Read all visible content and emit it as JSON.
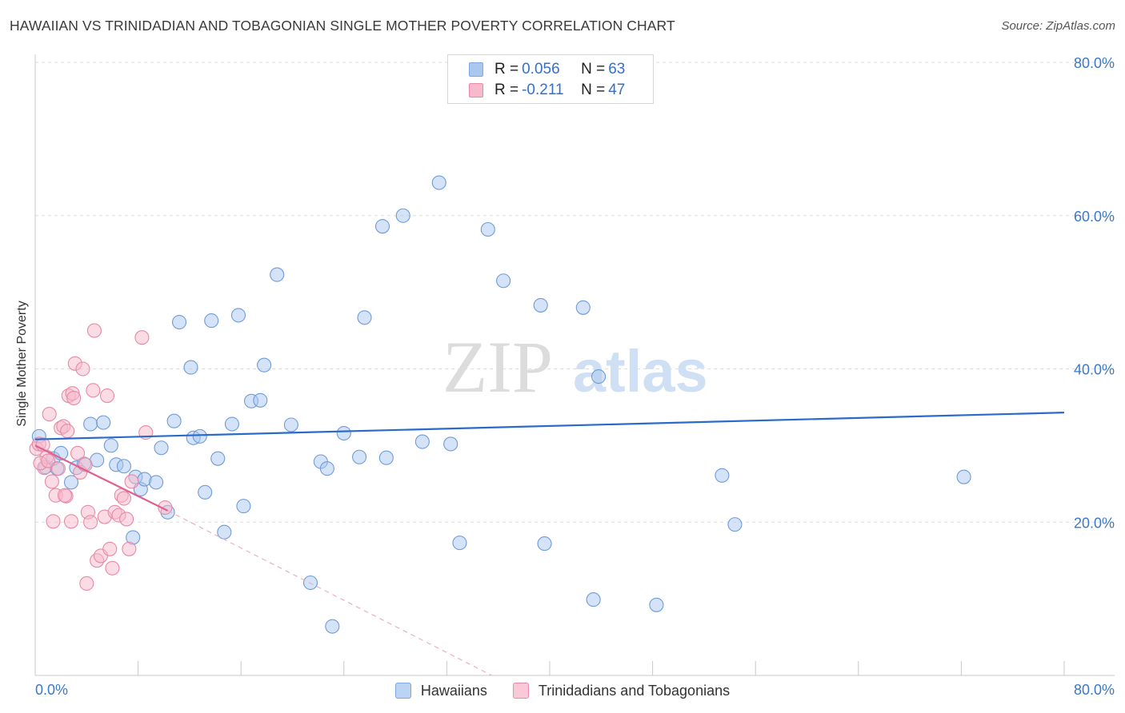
{
  "header": {
    "title": "HAWAIIAN VS TRINIDADIAN AND TOBAGONIAN SINGLE MOTHER POVERTY CORRELATION CHART",
    "source": "Source: ZipAtlas.com"
  },
  "watermark": {
    "zip": "ZIP",
    "atlas": "atlas"
  },
  "legend": {
    "items": [
      {
        "r_label": "R = ",
        "r_value": "0.056",
        "n_label": "N = ",
        "n_value": "63",
        "color": "#a9c8f0",
        "border": "#7fa6de"
      },
      {
        "r_label": "R = ",
        "r_value": "-0.211",
        "n_label": "N = ",
        "n_value": "47",
        "color": "#f7b9cc",
        "border": "#e88aa8"
      }
    ]
  },
  "bottom_legend": {
    "items": [
      {
        "label": "Hawaiians",
        "color": "#bcd4f4",
        "border": "#7fa6de"
      },
      {
        "label": "Trinidadians and Tobagonians",
        "color": "#f9c9d7",
        "border": "#e88aa8"
      }
    ]
  },
  "chart_data": {
    "type": "scatter",
    "title": "HAWAIIAN VS TRINIDADIAN AND TOBAGONIAN SINGLE MOTHER POVERTY CORRELATION CHART",
    "xlabel": "",
    "ylabel": "Single Mother Poverty",
    "xlim": [
      0,
      80
    ],
    "ylim": [
      0,
      80
    ],
    "x_tick_labels": [
      "0.0%",
      "80.0%"
    ],
    "y_ticks": [
      20,
      40,
      60,
      80
    ],
    "y_tick_labels": [
      "20.0%",
      "40.0%",
      "60.0%",
      "80.0%"
    ],
    "grid": true,
    "series": [
      {
        "name": "Hawaiians",
        "color": "#a9c8f0",
        "stroke": "#6f9bd8",
        "line_color": "#2a6bc9",
        "trend": {
          "x": [
            0,
            80
          ],
          "y": [
            30.8,
            34.3
          ]
        },
        "points": [
          [
            0.3,
            31.2
          ],
          [
            0.8,
            27.2
          ],
          [
            1.4,
            28.3
          ],
          [
            1.7,
            27.0
          ],
          [
            2.0,
            29.0
          ],
          [
            2.8,
            25.2
          ],
          [
            3.2,
            27.1
          ],
          [
            3.8,
            27.6
          ],
          [
            4.3,
            32.8
          ],
          [
            4.8,
            28.1
          ],
          [
            5.3,
            33.0
          ],
          [
            5.9,
            30.0
          ],
          [
            6.3,
            27.5
          ],
          [
            6.9,
            27.3
          ],
          [
            7.6,
            18.0
          ],
          [
            7.8,
            25.9
          ],
          [
            8.2,
            24.3
          ],
          [
            8.5,
            25.6
          ],
          [
            9.4,
            25.2
          ],
          [
            9.8,
            29.7
          ],
          [
            10.3,
            21.3
          ],
          [
            10.8,
            33.2
          ],
          [
            11.2,
            46.1
          ],
          [
            12.1,
            40.2
          ],
          [
            12.3,
            31.0
          ],
          [
            12.8,
            31.2
          ],
          [
            13.2,
            23.9
          ],
          [
            13.7,
            46.3
          ],
          [
            14.2,
            28.3
          ],
          [
            14.7,
            18.7
          ],
          [
            15.3,
            32.8
          ],
          [
            15.8,
            47.0
          ],
          [
            16.2,
            22.1
          ],
          [
            16.8,
            35.8
          ],
          [
            17.5,
            35.9
          ],
          [
            17.8,
            40.5
          ],
          [
            18.8,
            52.3
          ],
          [
            19.9,
            32.7
          ],
          [
            21.4,
            12.1
          ],
          [
            22.2,
            27.9
          ],
          [
            22.7,
            27.0
          ],
          [
            23.1,
            6.4
          ],
          [
            24.0,
            31.6
          ],
          [
            25.2,
            28.5
          ],
          [
            25.6,
            46.7
          ],
          [
            27.0,
            58.6
          ],
          [
            27.3,
            28.4
          ],
          [
            28.6,
            60.0
          ],
          [
            30.1,
            30.5
          ],
          [
            31.4,
            64.3
          ],
          [
            32.3,
            30.2
          ],
          [
            33.0,
            17.3
          ],
          [
            35.2,
            58.2
          ],
          [
            36.4,
            51.5
          ],
          [
            39.3,
            48.3
          ],
          [
            39.6,
            17.2
          ],
          [
            42.6,
            48.0
          ],
          [
            43.4,
            9.9
          ],
          [
            43.8,
            39.0
          ],
          [
            48.3,
            9.2
          ],
          [
            53.4,
            26.1
          ],
          [
            54.4,
            19.7
          ],
          [
            72.2,
            25.9
          ]
        ]
      },
      {
        "name": "Trinidadians and Tobagonians",
        "color": "#f7b9cc",
        "stroke": "#e68aa7",
        "line_color": "#e0618f",
        "trend": {
          "x": [
            0,
            10.3
          ],
          "y": [
            30.0,
            21.5
          ]
        },
        "trend_dashed": {
          "x": [
            10.3,
            35.5
          ],
          "y": [
            21.5,
            0
          ]
        },
        "points": [
          [
            0.1,
            29.6
          ],
          [
            0.3,
            30.2
          ],
          [
            0.6,
            30.1
          ],
          [
            0.7,
            27.1
          ],
          [
            0.9,
            28.5
          ],
          [
            1.1,
            34.1
          ],
          [
            1.3,
            25.3
          ],
          [
            1.4,
            20.1
          ],
          [
            1.6,
            23.5
          ],
          [
            1.8,
            27.0
          ],
          [
            2.0,
            32.3
          ],
          [
            2.2,
            32.5
          ],
          [
            2.4,
            23.4
          ],
          [
            2.5,
            31.9
          ],
          [
            2.6,
            36.5
          ],
          [
            2.8,
            20.1
          ],
          [
            2.9,
            36.8
          ],
          [
            3.0,
            36.2
          ],
          [
            3.1,
            40.7
          ],
          [
            3.3,
            29.0
          ],
          [
            3.5,
            26.5
          ],
          [
            3.7,
            40.0
          ],
          [
            3.9,
            27.5
          ],
          [
            4.0,
            12.0
          ],
          [
            4.1,
            21.3
          ],
          [
            4.3,
            20.0
          ],
          [
            4.5,
            37.2
          ],
          [
            4.6,
            45.0
          ],
          [
            4.8,
            15.0
          ],
          [
            5.1,
            15.6
          ],
          [
            5.4,
            20.7
          ],
          [
            5.6,
            36.5
          ],
          [
            5.8,
            16.5
          ],
          [
            6.0,
            14.0
          ],
          [
            6.2,
            21.3
          ],
          [
            6.5,
            20.9
          ],
          [
            6.7,
            23.5
          ],
          [
            6.9,
            23.1
          ],
          [
            7.1,
            20.4
          ],
          [
            7.3,
            16.5
          ],
          [
            7.5,
            25.3
          ],
          [
            8.3,
            44.1
          ],
          [
            8.6,
            31.7
          ],
          [
            10.1,
            21.9
          ],
          [
            0.4,
            27.7
          ],
          [
            1.0,
            28.0
          ],
          [
            2.3,
            23.5
          ]
        ]
      }
    ]
  }
}
